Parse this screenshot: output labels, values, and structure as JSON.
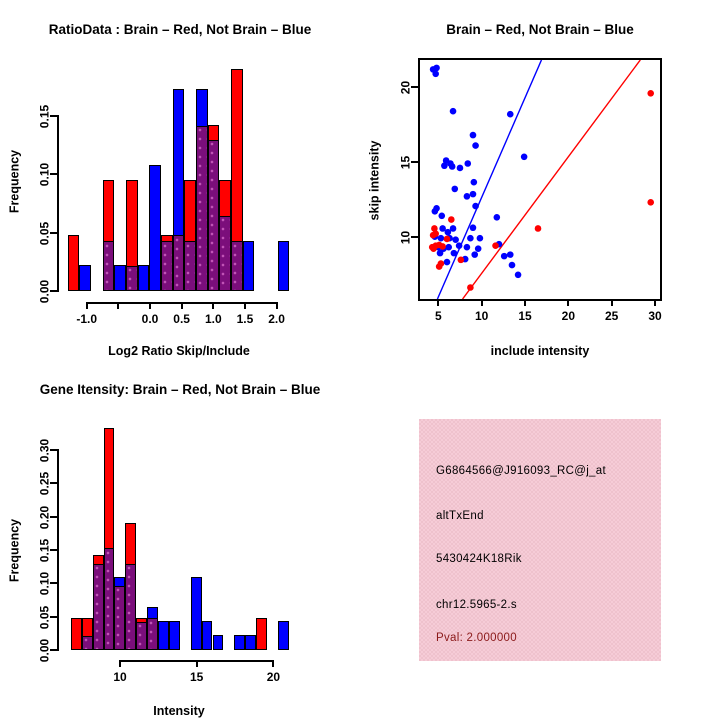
{
  "colors": {
    "red": "#FF0000",
    "blue": "#0000FF",
    "purple": "#7B0E7B",
    "dark_red": "#8B1A1A",
    "black": "#000000",
    "pink_bg": "#F3C7D1"
  },
  "chart_data": [
    {
      "type": "bar",
      "style": "overlapping-histogram",
      "title": "RatioData : Brain – Red, Not Brain – Blue",
      "xlabel": "Log2 Ratio Skip/Include",
      "ylabel": "Frequency",
      "legend": {
        "Brain": "red",
        "Not Brain": "blue"
      },
      "xlim": [
        -1.44,
        2.34
      ],
      "ylim": [
        0,
        0.198
      ],
      "bin_width": 0.184,
      "x_ticks": [
        {
          "v": -1.0,
          "label": "-1.0"
        },
        {
          "v": -0.5,
          "label": ""
        },
        {
          "v": 0.0,
          "label": "0.0"
        },
        {
          "v": 0.5,
          "label": "0.5"
        },
        {
          "v": 1.0,
          "label": "1.0"
        },
        {
          "v": 1.5,
          "label": "1.5"
        },
        {
          "v": 2.0,
          "label": "2.0"
        }
      ],
      "y_ticks": [
        {
          "v": 0.0,
          "label": "0.00"
        },
        {
          "v": 0.05,
          "label": "0.05"
        },
        {
          "v": 0.1,
          "label": "0.10"
        },
        {
          "v": 0.15,
          "label": "0.15"
        }
      ],
      "bins": [
        {
          "x0": -1.3,
          "red": 0.048,
          "blue": 0
        },
        {
          "x0": -1.116,
          "red": 0,
          "blue": 0.022
        },
        {
          "x0": -0.747,
          "red": 0.095,
          "blue": 0.043
        },
        {
          "x0": -0.563,
          "red": 0,
          "blue": 0.022
        },
        {
          "x0": -0.379,
          "red": 0.095,
          "blue": 0.022
        },
        {
          "x0": -0.195,
          "red": 0,
          "blue": 0.022
        },
        {
          "x0": -0.011,
          "red": 0,
          "blue": 0.108
        },
        {
          "x0": 0.174,
          "red": 0.048,
          "blue": 0.043
        },
        {
          "x0": 0.358,
          "red": 0.048,
          "blue": 0.173
        },
        {
          "x0": 0.542,
          "red": 0.095,
          "blue": 0.043
        },
        {
          "x0": 0.726,
          "red": 0.142,
          "blue": 0.173
        },
        {
          "x0": 0.911,
          "red": 0.142,
          "blue": 0.13
        },
        {
          "x0": 1.095,
          "red": 0.095,
          "blue": 0.065
        },
        {
          "x0": 1.279,
          "red": 0.19,
          "blue": 0.043
        },
        {
          "x0": 1.463,
          "red": 0,
          "blue": 0.043
        },
        {
          "x0": 2.016,
          "red": 0,
          "blue": 0.043
        }
      ]
    },
    {
      "type": "scatter",
      "title": "Brain – Red, Not Brain – Blue",
      "xlabel": "include intensity",
      "ylabel": "skip intensity",
      "xlim": [
        2.89,
        30.57
      ],
      "ylim": [
        5.83,
        21.83
      ],
      "x_ticks": [
        {
          "v": 5,
          "label": "5"
        },
        {
          "v": 10,
          "label": "10"
        },
        {
          "v": 15,
          "label": "15"
        },
        {
          "v": 20,
          "label": "20"
        },
        {
          "v": 25,
          "label": "25"
        },
        {
          "v": 30,
          "label": "30"
        }
      ],
      "y_ticks": [
        {
          "v": 10,
          "label": "10"
        },
        {
          "v": 15,
          "label": "15"
        },
        {
          "v": 20,
          "label": "20"
        }
      ],
      "series": [
        {
          "name": "Not Brain",
          "color": "blue",
          "points": [
            [
              4.4,
              21.2
            ],
            [
              4.8,
              21.3
            ],
            [
              4.7,
              20.9
            ],
            [
              6.7,
              18.4
            ],
            [
              13.3,
              18.2
            ],
            [
              9.0,
              16.8
            ],
            [
              9.3,
              16.1
            ],
            [
              14.9,
              15.35
            ],
            [
              5.9,
              15.1
            ],
            [
              6.4,
              14.9
            ],
            [
              8.4,
              14.9
            ],
            [
              6.6,
              14.7
            ],
            [
              5.7,
              14.75
            ],
            [
              7.5,
              14.6
            ],
            [
              9.1,
              13.65
            ],
            [
              6.9,
              13.2
            ],
            [
              9.0,
              12.85
            ],
            [
              8.3,
              12.7
            ],
            [
              9.3,
              12.05
            ],
            [
              4.8,
              11.9
            ],
            [
              4.6,
              11.7
            ],
            [
              11.75,
              11.3
            ],
            [
              5.4,
              11.4
            ],
            [
              5.5,
              10.55
            ],
            [
              6.7,
              10.55
            ],
            [
              9.0,
              10.6
            ],
            [
              6.1,
              10.3
            ],
            [
              4.6,
              10.0
            ],
            [
              5.3,
              9.9
            ],
            [
              6.3,
              9.9
            ],
            [
              7.0,
              9.8
            ],
            [
              8.7,
              9.9
            ],
            [
              9.8,
              9.9
            ],
            [
              5.0,
              9.3
            ],
            [
              5.6,
              9.2
            ],
            [
              6.2,
              9.3
            ],
            [
              7.4,
              9.4
            ],
            [
              8.3,
              9.3
            ],
            [
              9.6,
              9.2
            ],
            [
              12.0,
              9.5
            ],
            [
              5.2,
              8.9
            ],
            [
              6.8,
              8.9
            ],
            [
              9.2,
              8.8
            ],
            [
              12.6,
              8.7
            ],
            [
              13.3,
              8.8
            ],
            [
              6.0,
              8.3
            ],
            [
              8.1,
              8.5
            ],
            [
              13.5,
              8.1
            ],
            [
              14.2,
              7.45
            ]
          ]
        },
        {
          "name": "Brain",
          "color": "red",
          "points": [
            [
              29.5,
              19.6
            ],
            [
              29.5,
              12.3
            ],
            [
              16.5,
              10.55
            ],
            [
              11.6,
              9.4
            ],
            [
              8.7,
              6.6
            ],
            [
              6.5,
              11.15
            ],
            [
              4.55,
              10.55
            ],
            [
              4.7,
              10.2
            ],
            [
              4.4,
              10.1
            ],
            [
              4.3,
              9.3
            ],
            [
              4.7,
              9.4
            ],
            [
              5.1,
              9.45
            ],
            [
              5.5,
              9.35
            ],
            [
              4.45,
              9.2
            ],
            [
              6.0,
              9.85
            ],
            [
              5.3,
              8.2
            ],
            [
              5.1,
              8.0
            ],
            [
              7.6,
              8.45
            ]
          ]
        }
      ],
      "lines": [
        {
          "color": "blue",
          "x1": 4.9,
          "y1": 5.83,
          "x2": 16.9,
          "y2": 21.83
        },
        {
          "color": "red",
          "x1": 7.8,
          "y1": 5.83,
          "x2": 28.3,
          "y2": 21.83
        }
      ]
    },
    {
      "type": "bar",
      "style": "overlapping-histogram",
      "title": "Gene Itensity: Brain – Red, Not Brain – Blue",
      "xlabel": "Intensity",
      "ylabel": "Frequency",
      "legend": {
        "Brain": "red",
        "Not Brain": "blue"
      },
      "xlim": [
        6.0,
        21.6
      ],
      "ylim": [
        0,
        0.346
      ],
      "bin_width": 0.71,
      "x_ticks": [
        {
          "v": 10,
          "label": "10"
        },
        {
          "v": 15,
          "label": "15"
        },
        {
          "v": 20,
          "label": "20"
        }
      ],
      "y_ticks": [
        {
          "v": 0.0,
          "label": "0.00"
        },
        {
          "v": 0.05,
          "label": "0.05"
        },
        {
          "v": 0.1,
          "label": "0.10"
        },
        {
          "v": 0.15,
          "label": "0.15"
        },
        {
          "v": 0.2,
          "label": "0.20"
        },
        {
          "v": 0.25,
          "label": "0.25"
        },
        {
          "v": 0.3,
          "label": "0.30"
        }
      ],
      "bins": [
        {
          "x0": 6.8,
          "red": 0.048,
          "blue": 0
        },
        {
          "x0": 7.51,
          "red": 0.048,
          "blue": 0.022
        },
        {
          "x0": 8.22,
          "red": 0.143,
          "blue": 0.13
        },
        {
          "x0": 8.93,
          "red": 0.333,
          "blue": 0.153
        },
        {
          "x0": 9.64,
          "red": 0.097,
          "blue": 0.11
        },
        {
          "x0": 10.35,
          "red": 0.19,
          "blue": 0.13
        },
        {
          "x0": 11.06,
          "red": 0.048,
          "blue": 0.043
        },
        {
          "x0": 11.77,
          "red": 0.048,
          "blue": 0.065
        },
        {
          "x0": 12.48,
          "red": 0,
          "blue": 0.043
        },
        {
          "x0": 13.19,
          "red": 0,
          "blue": 0.043
        },
        {
          "x0": 14.61,
          "red": 0,
          "blue": 0.11
        },
        {
          "x0": 15.32,
          "red": 0,
          "blue": 0.043
        },
        {
          "x0": 16.03,
          "red": 0,
          "blue": 0.022
        },
        {
          "x0": 17.45,
          "red": 0,
          "blue": 0.022
        },
        {
          "x0": 18.16,
          "red": 0,
          "blue": 0.022
        },
        {
          "x0": 18.87,
          "red": 0.048,
          "blue": 0
        },
        {
          "x0": 20.29,
          "red": 0,
          "blue": 0.043
        }
      ]
    }
  ],
  "info_panel": {
    "lines": [
      {
        "text": "G6864566@J916093_RC@j_at",
        "color": "black"
      },
      {
        "text": "altTxEnd",
        "color": "black"
      },
      {
        "text": "5430424K18Rik",
        "color": "black"
      },
      {
        "text": "chr12.5965-2.s",
        "color": "black"
      },
      {
        "text": "Pval: 2.000000",
        "color": "dark_red"
      }
    ]
  }
}
